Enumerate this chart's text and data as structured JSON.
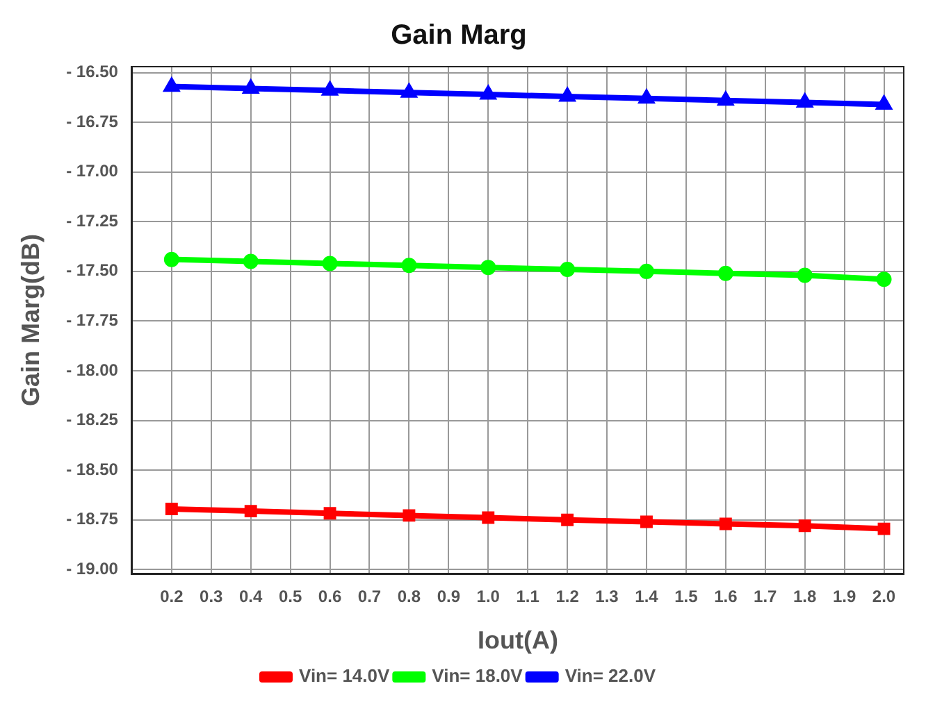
{
  "chart_data": {
    "type": "line",
    "title": "Gain Marg",
    "xlabel": "Iout(A)",
    "ylabel": "Gain Marg(dB)",
    "x": [
      0.2,
      0.4,
      0.6,
      0.8,
      1.0,
      1.2,
      1.4,
      1.6,
      1.8,
      2.0
    ],
    "series": [
      {
        "name": "Vin= 14.0V",
        "color": "#ff0000",
        "marker": "square",
        "values": [
          -18.695,
          -18.706,
          -18.717,
          -18.728,
          -18.739,
          -18.75,
          -18.76,
          -18.77,
          -18.78,
          -18.795
        ]
      },
      {
        "name": "Vin= 18.0V",
        "color": "#00ff00",
        "marker": "circle",
        "values": [
          -17.44,
          -17.45,
          -17.46,
          -17.47,
          -17.48,
          -17.49,
          -17.5,
          -17.51,
          -17.52,
          -17.54
        ]
      },
      {
        "name": "Vin= 22.0V",
        "color": "#0000ff",
        "marker": "triangle",
        "values": [
          -16.57,
          -16.58,
          -16.59,
          -16.6,
          -16.61,
          -16.62,
          -16.63,
          -16.64,
          -16.65,
          -16.66
        ]
      }
    ],
    "xlim": [
      0.1,
      2.05
    ],
    "xticks": [
      0.2,
      0.3,
      0.4,
      0.5,
      0.6,
      0.7,
      0.8,
      0.9,
      {
        "value": 1,
        "label": "1.0"
      },
      1.1,
      1.2,
      1.3,
      1.4,
      1.5,
      1.6,
      1.7,
      1.8,
      1.9,
      {
        "value": 2,
        "label": "2.0"
      }
    ],
    "ylim": [
      -19.02,
      -16.47
    ],
    "yticks": [
      {
        "value": -16.5,
        "label": "- 16.50"
      },
      {
        "value": -16.75,
        "label": "- 16.75"
      },
      {
        "value": -17,
        "label": "- 17.00"
      },
      {
        "value": -17.25,
        "label": "- 17.25"
      },
      {
        "value": -17.5,
        "label": "- 17.50"
      },
      {
        "value": -17.75,
        "label": "- 17.75"
      },
      {
        "value": -18,
        "label": "- 18.00"
      },
      {
        "value": -18.25,
        "label": "- 18.25"
      },
      {
        "value": -18.5,
        "label": "- 18.50"
      },
      {
        "value": -18.75,
        "label": "- 18.75"
      },
      {
        "value": -19,
        "label": "- 19.00"
      }
    ],
    "grid": true,
    "legend": "bottom",
    "line_style": "solid"
  }
}
